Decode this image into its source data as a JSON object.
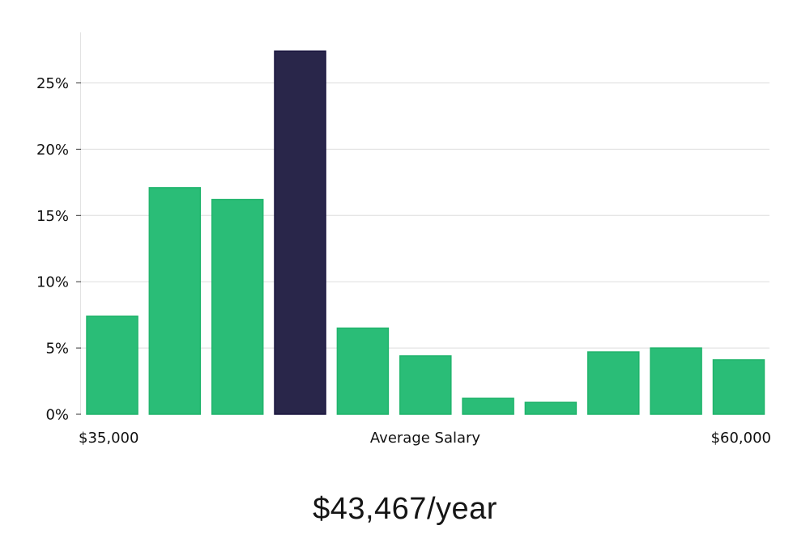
{
  "chart_data": {
    "type": "bar",
    "title": "",
    "xlabel": "Average Salary",
    "ylabel": "",
    "x_range_labels": [
      "$35,000",
      "$60,000"
    ],
    "y_tick_labels": [
      "0%",
      "5%",
      "10%",
      "15%",
      "20%",
      "25%"
    ],
    "y_ticks": [
      0,
      5,
      10,
      15,
      20,
      25
    ],
    "ylim": [
      0,
      28.8
    ],
    "values": [
      7.4,
      17.1,
      16.2,
      27.4,
      6.5,
      4.4,
      1.2,
      0.9,
      4.7,
      5.0,
      4.1
    ],
    "highlight_index": 3,
    "grid": true,
    "colors": {
      "bar": "#2abd77",
      "bar_edge": "#20b46c",
      "highlight": "#29264a",
      "highlight_edge": "#1b1740",
      "grid": "#dddddd",
      "axis": "#e2e2e2"
    }
  },
  "summary": {
    "salary_text": "$43,467/year"
  }
}
